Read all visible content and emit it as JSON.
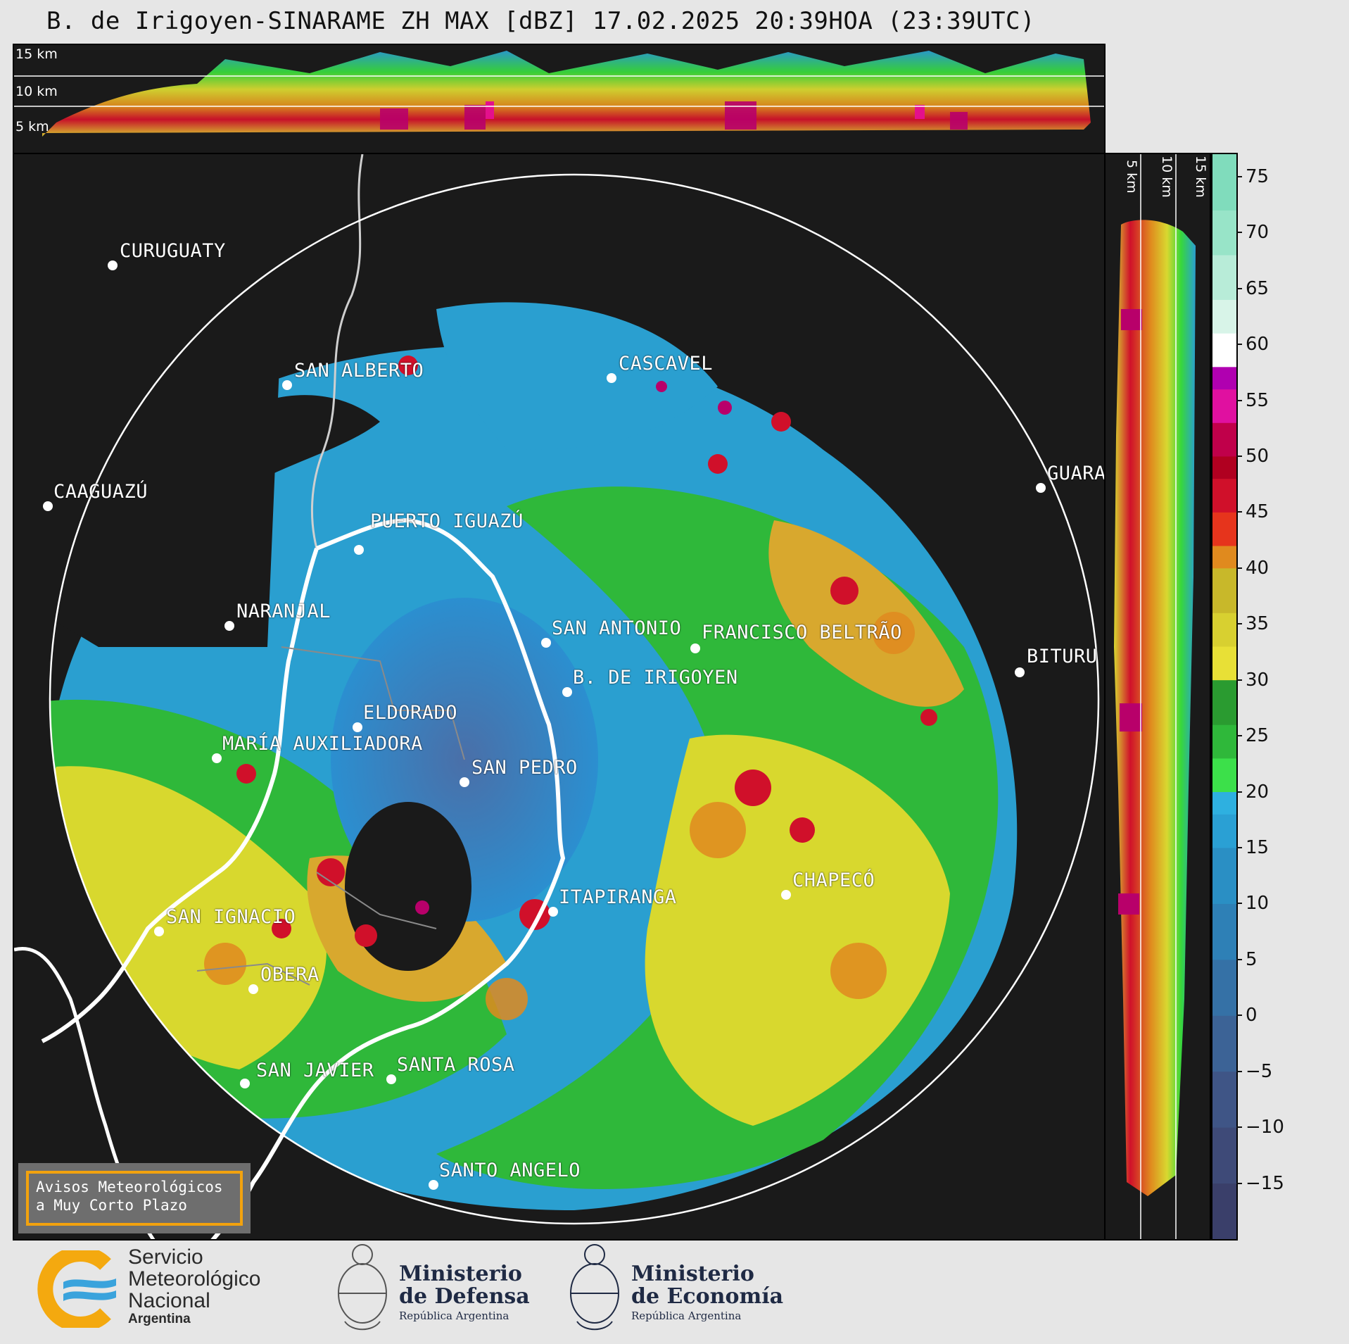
{
  "title": "B. de Irigoyen-SINARAME ZH MAX [dBZ] 17.02.2025 20:39HOA (23:39UTC)",
  "top_section": {
    "height_labels": [
      "15 km",
      "10 km",
      "5 km"
    ]
  },
  "side_section": {
    "height_labels": [
      "5 km",
      "10 km",
      "15 km"
    ]
  },
  "colorbar": {
    "unit": "dBZ",
    "ticks": [
      "75",
      "70",
      "65",
      "60",
      "55",
      "50",
      "45",
      "40",
      "35",
      "30",
      "25",
      "20",
      "15",
      "10",
      "5",
      "0",
      "−5",
      "−10",
      "−15"
    ],
    "range": [
      -20,
      77
    ]
  },
  "cities": [
    {
      "name": "CURUGUATY"
    },
    {
      "name": "SAN ALBERTO"
    },
    {
      "name": "CASCAVEL"
    },
    {
      "name": "CAAGUAZÚ"
    },
    {
      "name": "GUARA"
    },
    {
      "name": "PUERTO IGUAZÚ"
    },
    {
      "name": "NARANJAL"
    },
    {
      "name": "SAN ANTONIO"
    },
    {
      "name": "FRANCISCO BELTRÃO"
    },
    {
      "name": "BITURU"
    },
    {
      "name": "B. DE IRIGOYEN"
    },
    {
      "name": "ELDORADO"
    },
    {
      "name": "MARÍA AUXILIADORA"
    },
    {
      "name": "SAN PEDRO"
    },
    {
      "name": "CHAPECÓ"
    },
    {
      "name": "ITAPIRANGA"
    },
    {
      "name": "SAN IGNACIO"
    },
    {
      "name": "OBERA"
    },
    {
      "name": "SAN JAVIER"
    },
    {
      "name": "SANTA ROSA"
    },
    {
      "name": "SANTO ANGELO"
    }
  ],
  "warning_box": {
    "line1": "Avisos Meteorológicos",
    "line2": "a Muy Corto Plazo"
  },
  "logos": {
    "smn": {
      "line1": "Servicio",
      "line2": "Meteorológico",
      "line3": "Nacional",
      "line4": "Argentina"
    },
    "defensa": {
      "line1": "Ministerio",
      "line2": "de Defensa",
      "line3": "República Argentina"
    },
    "economia": {
      "line1": "Ministerio",
      "line2": "de Economía",
      "line3": "República Argentina"
    }
  },
  "colors": {
    "background": "#1a1a1a",
    "page": "#e6e6e6",
    "range_ring": "#ffffff",
    "border_orange": "#f2a20e"
  }
}
